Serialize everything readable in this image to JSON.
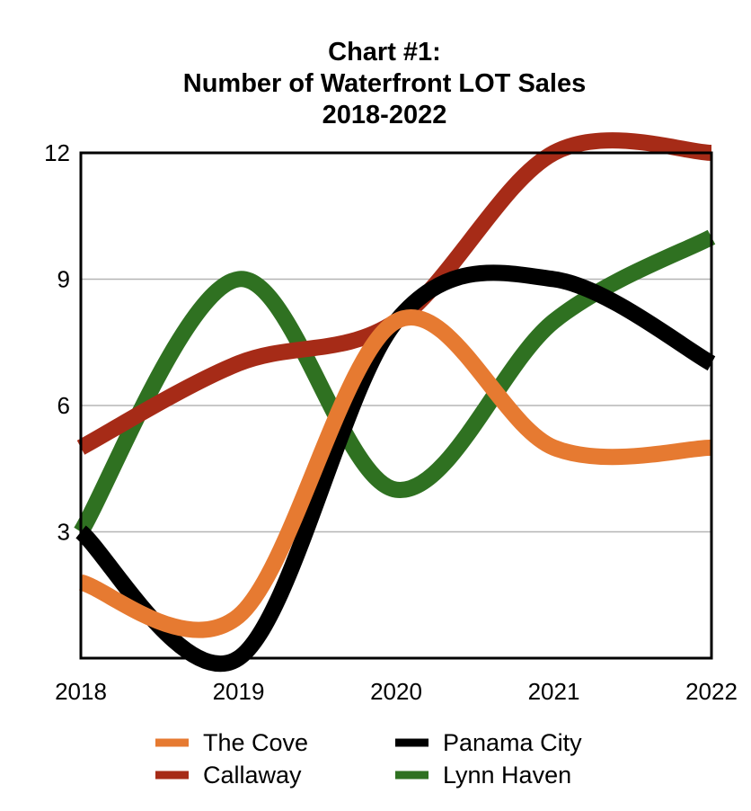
{
  "chart_data": {
    "type": "line",
    "title": [
      "Chart #1:",
      "Number of Waterfront LOT Sales",
      "2018-2022"
    ],
    "xlabel": "",
    "ylabel": "",
    "categories": [
      "2018",
      "2019",
      "2020",
      "2021",
      "2022"
    ],
    "ylim": [
      0,
      12
    ],
    "yticks": [
      "3",
      "6",
      "9",
      "12"
    ],
    "ytick_values": [
      3,
      6,
      9,
      12
    ],
    "grid": true,
    "smooth": true,
    "legend_position": "bottom",
    "series": [
      {
        "name": "The Cove",
        "color": "#E67A31",
        "values": [
          1.8,
          1,
          8,
          5,
          5
        ]
      },
      {
        "name": "Panama City",
        "color": "#000000",
        "values": [
          3,
          0,
          8,
          9,
          7
        ]
      },
      {
        "name": "Callaway",
        "color": "#A62B17",
        "values": [
          5,
          7,
          8,
          12,
          12
        ]
      },
      {
        "name": "Lynn Haven",
        "color": "#2F7121",
        "values": [
          3,
          9,
          4,
          8,
          10
        ]
      }
    ]
  }
}
